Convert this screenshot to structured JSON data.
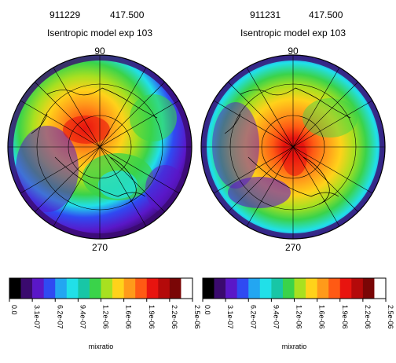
{
  "maps": [
    {
      "date": "911229",
      "level": "417.500",
      "title": "Isentropic model  exp 103",
      "top_label": "90",
      "bottom_label": "270",
      "projection": "north polar stereographic",
      "field": "mixratio"
    },
    {
      "date": "911231",
      "level": "417.500",
      "title": "Isentropic model  exp 103",
      "top_label": "90",
      "bottom_label": "270",
      "projection": "north polar stereographic",
      "field": "mixratio"
    }
  ],
  "colorbar": {
    "title": "mixratio",
    "tick_labels": [
      "0.0",
      "3.1e-07",
      "6.2e-07",
      "9.4e-07",
      "1.2e-06",
      "1.6e-06",
      "1.9e-06",
      "2.2e-06",
      "2.5e-06"
    ],
    "colors": [
      "#000000",
      "#3a0a6e",
      "#5a17c8",
      "#2f4af2",
      "#23a6f1",
      "#21e0e8",
      "#18c6a6",
      "#3ad34a",
      "#a8e020",
      "#ffd21a",
      "#ff9a1a",
      "#ff5a14",
      "#e8140f",
      "#b40a0a",
      "#7a0606",
      "#ffffff"
    ]
  }
}
